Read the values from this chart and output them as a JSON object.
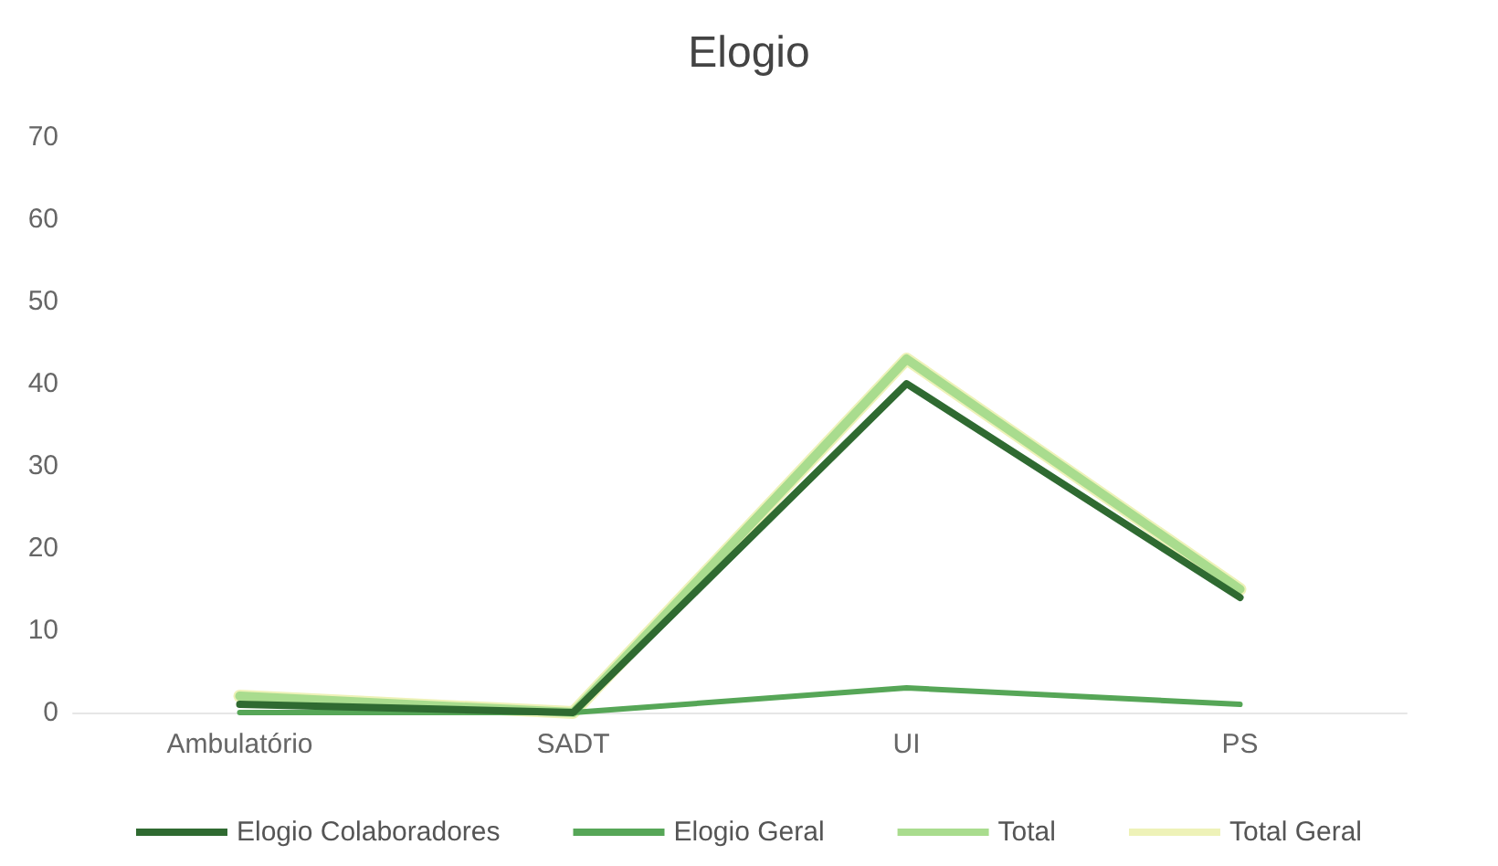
{
  "chart_data": {
    "type": "line",
    "title": "Elogio",
    "categories": [
      "Ambulatório",
      "SADT",
      "UI",
      "PS"
    ],
    "series": [
      {
        "name": "Total Geral",
        "color": "#eef2b8",
        "values": [
          2,
          0,
          43,
          15
        ]
      },
      {
        "name": "Total",
        "color": "#a9dc8e",
        "values": [
          2,
          0,
          43,
          15
        ]
      },
      {
        "name": "Elogio Geral",
        "color": "#56a657",
        "values": [
          0,
          0,
          3,
          1
        ]
      },
      {
        "name": "Elogio Colaboradores",
        "color": "#2f6a31",
        "values": [
          1,
          0,
          40,
          14
        ]
      }
    ],
    "ylim": [
      0,
      70
    ],
    "yticks": [
      0,
      10,
      20,
      30,
      40,
      50,
      60,
      70
    ],
    "grid": false,
    "legend": "bottom",
    "marker": "none",
    "line_style": "solid"
  }
}
